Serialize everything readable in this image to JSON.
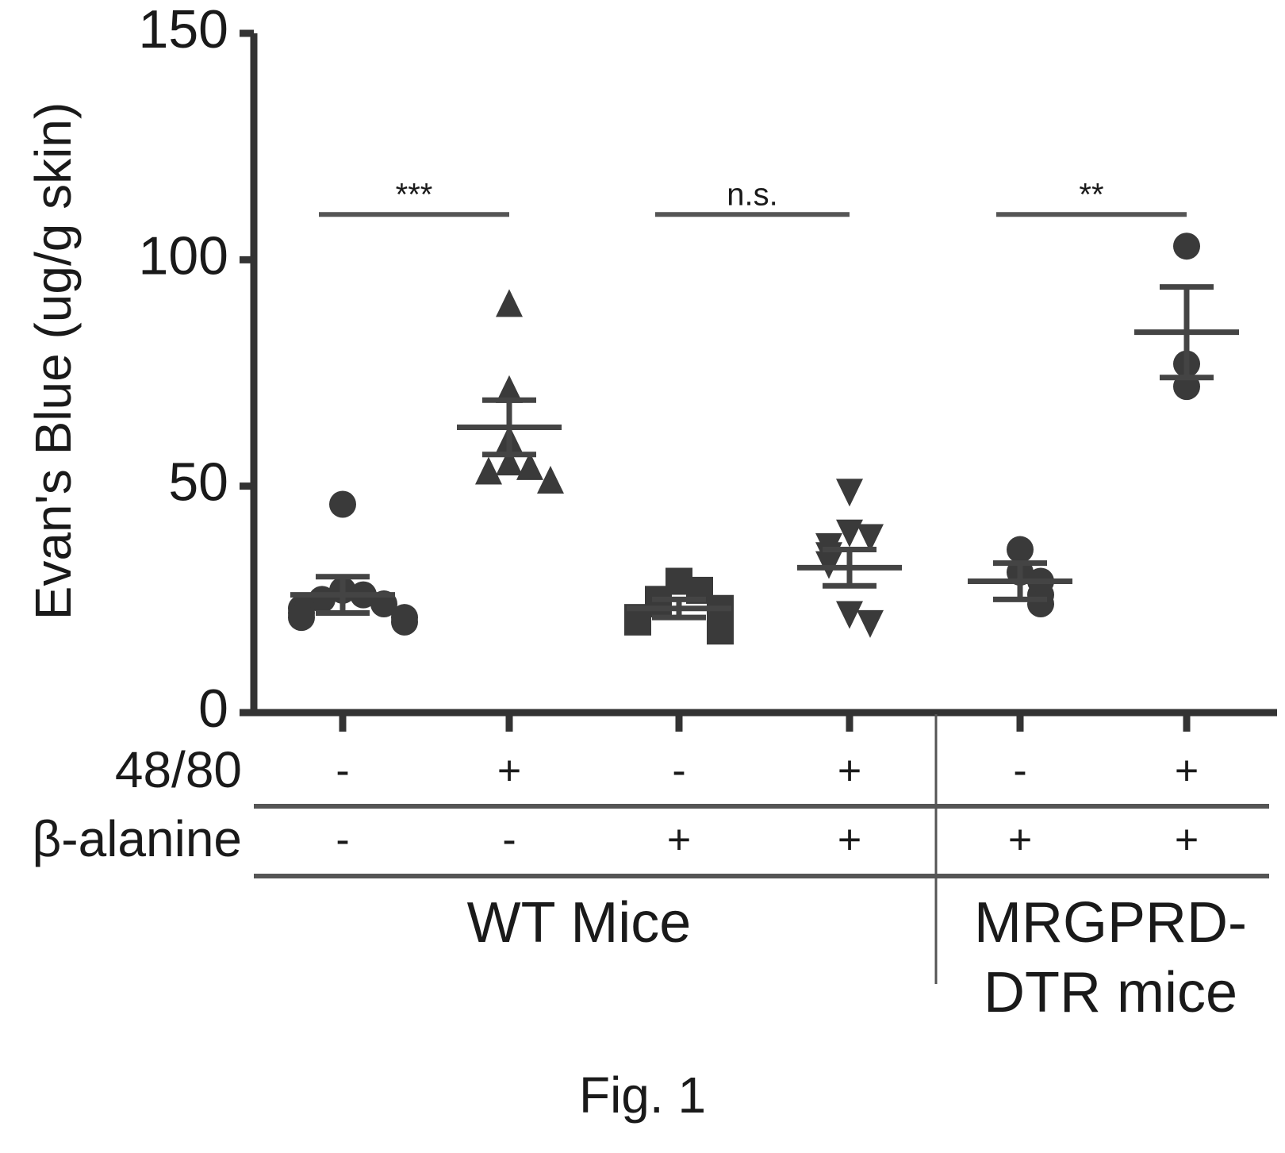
{
  "chart_data": {
    "type": "scatter",
    "ylabel": "Evan's Blue (ug/g skin)",
    "ylim": [
      0,
      150
    ],
    "yticks": [
      0,
      50,
      100,
      150
    ],
    "row_labels": [
      "48/80",
      "β-alanine"
    ],
    "group_labels": [
      {
        "text": "WT Mice",
        "groups": [
          0,
          1,
          2,
          3
        ]
      },
      {
        "text": "MRGPRD-\nDTR mice",
        "lines": [
          "MRGPRD-",
          "DTR mice"
        ],
        "groups": [
          4,
          5
        ]
      }
    ],
    "groups": [
      {
        "c4880": "-",
        "balanine": "-",
        "marker": "circle",
        "values": [
          46,
          27,
          26,
          25,
          24,
          23,
          22,
          21,
          21,
          20
        ],
        "mean": 26,
        "sem_upper": 30,
        "sem_lower": 22
      },
      {
        "c4880": "+",
        "balanine": "-",
        "marker": "triangle-up",
        "values": [
          90,
          71,
          60,
          55,
          54,
          53,
          51
        ],
        "mean": 63,
        "sem_upper": 69,
        "sem_lower": 57
      },
      {
        "c4880": "-",
        "balanine": "+",
        "marker": "square",
        "values": [
          29,
          27,
          25,
          24,
          23,
          22,
          21,
          20,
          18
        ],
        "mean": 23,
        "sem_upper": 25,
        "sem_lower": 21
      },
      {
        "c4880": "+",
        "balanine": "+",
        "marker": "triangle-down",
        "values": [
          49,
          40,
          39,
          37,
          35,
          33,
          22,
          20
        ],
        "mean": 32,
        "sem_upper": 36,
        "sem_lower": 28
      },
      {
        "c4880": "-",
        "balanine": "+",
        "marker": "circle",
        "values": [
          36,
          31,
          29,
          26,
          24
        ],
        "mean": 29,
        "sem_upper": 33,
        "sem_lower": 25
      },
      {
        "c4880": "+",
        "balanine": "+",
        "marker": "circle",
        "values": [
          103,
          77,
          72
        ],
        "mean": 84,
        "sem_upper": 94,
        "sem_lower": 74
      }
    ],
    "significance": [
      {
        "from": 0,
        "to": 1,
        "y": 110,
        "label": "***"
      },
      {
        "from": 2,
        "to": 3,
        "y": 110,
        "label": "n.s."
      },
      {
        "from": 4,
        "to": 5,
        "y": 110,
        "label": "**"
      }
    ],
    "caption": "Fig. 1"
  }
}
